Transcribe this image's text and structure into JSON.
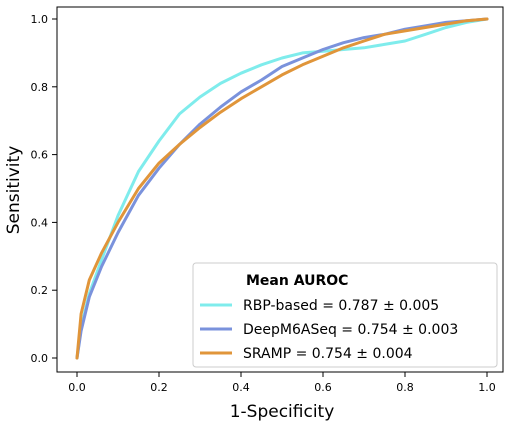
{
  "chart_data": {
    "type": "line",
    "xlabel": "1-Specificity",
    "ylabel": "Sensitivity",
    "xlim": [
      -0.0,
      1.0
    ],
    "ylim": [
      -0.0,
      1.0
    ],
    "xticks": [
      "0.0",
      "0.2",
      "0.4",
      "0.6",
      "0.8",
      "1.0"
    ],
    "yticks": [
      "0.0",
      "0.2",
      "0.4",
      "0.6",
      "0.8",
      "1.0"
    ],
    "grid": false,
    "legend": {
      "title": "Mean AUROC",
      "placement": "lower-right"
    },
    "series": [
      {
        "name": "RBP-based = 0.787 ± 0.005",
        "color": "#7fecec",
        "points": [
          [
            0,
            0
          ],
          [
            0.01,
            0.09
          ],
          [
            0.03,
            0.19
          ],
          [
            0.06,
            0.29
          ],
          [
            0.1,
            0.42
          ],
          [
            0.15,
            0.55
          ],
          [
            0.2,
            0.64
          ],
          [
            0.25,
            0.72
          ],
          [
            0.3,
            0.77
          ],
          [
            0.35,
            0.81
          ],
          [
            0.4,
            0.84
          ],
          [
            0.45,
            0.865
          ],
          [
            0.5,
            0.885
          ],
          [
            0.55,
            0.9
          ],
          [
            0.6,
            0.905
          ],
          [
            0.65,
            0.91
          ],
          [
            0.7,
            0.915
          ],
          [
            0.75,
            0.925
          ],
          [
            0.8,
            0.935
          ],
          [
            0.85,
            0.955
          ],
          [
            0.9,
            0.975
          ],
          [
            0.95,
            0.99
          ],
          [
            1.0,
            1.0
          ]
        ]
      },
      {
        "name": "DeepM6ASeq = 0.754 ± 0.003",
        "color": "#7a92dc",
        "points": [
          [
            0,
            0
          ],
          [
            0.01,
            0.08
          ],
          [
            0.03,
            0.18
          ],
          [
            0.06,
            0.27
          ],
          [
            0.1,
            0.37
          ],
          [
            0.15,
            0.48
          ],
          [
            0.2,
            0.56
          ],
          [
            0.25,
            0.63
          ],
          [
            0.3,
            0.69
          ],
          [
            0.35,
            0.74
          ],
          [
            0.4,
            0.785
          ],
          [
            0.45,
            0.82
          ],
          [
            0.5,
            0.86
          ],
          [
            0.55,
            0.885
          ],
          [
            0.6,
            0.91
          ],
          [
            0.65,
            0.93
          ],
          [
            0.7,
            0.945
          ],
          [
            0.75,
            0.955
          ],
          [
            0.8,
            0.97
          ],
          [
            0.85,
            0.98
          ],
          [
            0.9,
            0.99
          ],
          [
            0.95,
            0.995
          ],
          [
            1.0,
            1.0
          ]
        ]
      },
      {
        "name": "SRAMP = 0.754 ± 0.004",
        "color": "#e0953a",
        "points": [
          [
            0,
            0
          ],
          [
            0.01,
            0.13
          ],
          [
            0.03,
            0.23
          ],
          [
            0.06,
            0.31
          ],
          [
            0.1,
            0.4
          ],
          [
            0.15,
            0.5
          ],
          [
            0.2,
            0.575
          ],
          [
            0.25,
            0.63
          ],
          [
            0.3,
            0.68
          ],
          [
            0.35,
            0.725
          ],
          [
            0.4,
            0.765
          ],
          [
            0.45,
            0.8
          ],
          [
            0.5,
            0.835
          ],
          [
            0.55,
            0.865
          ],
          [
            0.6,
            0.89
          ],
          [
            0.65,
            0.915
          ],
          [
            0.7,
            0.935
          ],
          [
            0.75,
            0.955
          ],
          [
            0.8,
            0.965
          ],
          [
            0.85,
            0.975
          ],
          [
            0.9,
            0.985
          ],
          [
            0.95,
            0.995
          ],
          [
            1.0,
            1.0
          ]
        ]
      }
    ]
  }
}
